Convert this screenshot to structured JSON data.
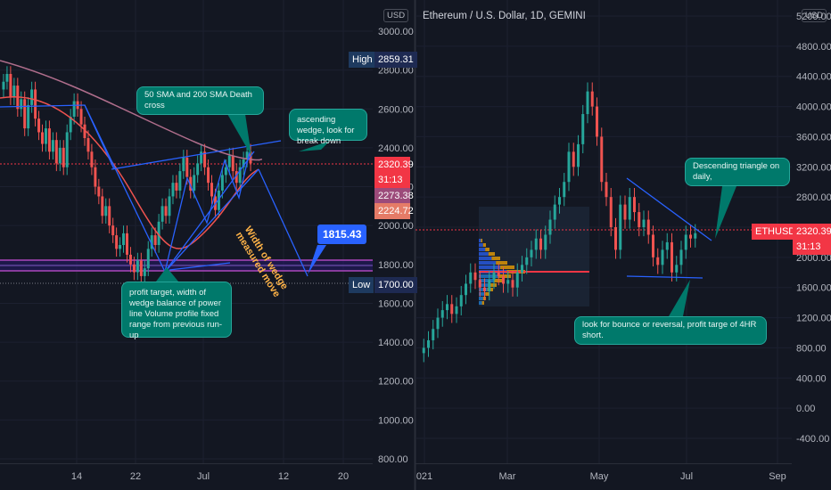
{
  "left_chart": {
    "currency": "USD",
    "price_ticks": [
      "3000.00",
      "2800.00",
      "2600.00",
      "2400.00",
      "2200.00",
      "2000.00",
      "1800.00",
      "1600.00",
      "1400.00",
      "1200.00",
      "1000.00",
      "800.00"
    ],
    "time_ticks": [
      "14",
      "22",
      "Jul",
      "12",
      "20"
    ],
    "high_label": "High",
    "high_value": "2859.31",
    "low_label": "Low",
    "low_value": "1700.00",
    "last_price": "2320.39",
    "countdown": "31:13",
    "sma_value_1": "2273.38",
    "sma_value_2": "2224.72",
    "target_price": "1815.43",
    "notes": {
      "death_cross": "50 SMA and 200 SMA Death cross",
      "ascending_wedge": "ascending wedge, look for break down",
      "profit_target": "profit target, width of wedge balance of power line Volume profile fixed range from previous run-up",
      "wedge_measure": "Width of wedge measured move"
    }
  },
  "right_chart": {
    "title": "Ethereum / U.S. Dollar, 1D, GEMINI",
    "currency": "USD",
    "price_ticks": [
      "5200.00",
      "4800.00",
      "4400.00",
      "4000.00",
      "3600.00",
      "3200.00",
      "2800.00",
      "2400.00",
      "2000.00",
      "1600.00",
      "1200.00",
      "800.00",
      "400.00",
      "0.00",
      "-400.00"
    ],
    "time_ticks": [
      "021",
      "Mar",
      "May",
      "Jul",
      "Sep"
    ],
    "symbol": "ETHUSD",
    "last_price": "2320.39",
    "countdown": "31:13",
    "notes": {
      "descending_triangle": "Descending triangle on daily,",
      "bounce": "look for bounce or reversal, profit targe of 4HR short."
    }
  },
  "colors": {
    "background": "#131722",
    "up_candle": "#26a69a",
    "down_candle": "#ef5350",
    "drawing": "#2962ff",
    "note_bg": "#00796b",
    "last_price_tag": "#f23645",
    "target_tag": "#2962ff",
    "sma_200": "#b06e8c",
    "sma_50": "#ef5350"
  }
}
